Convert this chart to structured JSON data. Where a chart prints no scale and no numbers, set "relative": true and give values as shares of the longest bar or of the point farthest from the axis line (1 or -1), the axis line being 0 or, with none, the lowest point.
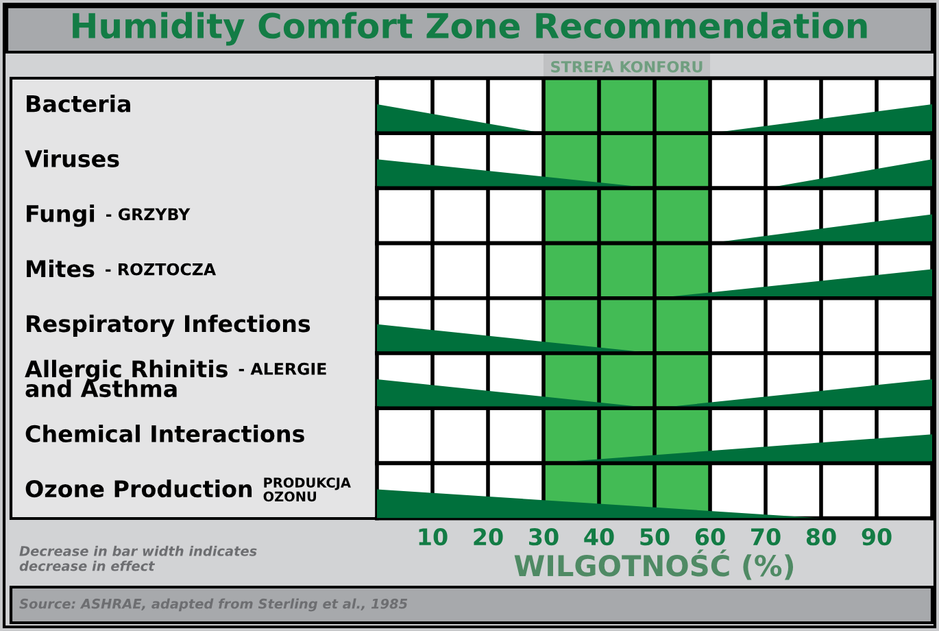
{
  "chart_data": [
    {
      "type": "area",
      "title": "Humidity Comfort Zone Recommendation",
      "ylabel": "Bacteria",
      "relative": true,
      "x": [
        0,
        30,
        60,
        100
      ],
      "series": [
        {
          "color": "#00703c",
          "values": [
            1,
            0,
            0,
            1
          ]
        }
      ],
      "xlim": [
        0,
        100
      ],
      "xticks": [
        10,
        20,
        30,
        40,
        50,
        60,
        70,
        80,
        90
      ],
      "grid": "x",
      "tick_labels": false,
      "bands": [
        {
          "axis": "x",
          "from": 30,
          "to": 60,
          "label": "STREFA KONFORU",
          "color": "#43bb55"
        }
      ]
    },
    {
      "type": "area",
      "ylabel": "Viruses",
      "relative": true,
      "x": [
        0,
        50,
        70,
        100
      ],
      "series": [
        {
          "color": "#00703c",
          "values": [
            1,
            0,
            0,
            1
          ]
        }
      ],
      "xlim": [
        0,
        100
      ],
      "xticks": [
        10,
        20,
        30,
        40,
        50,
        60,
        70,
        80,
        90
      ],
      "grid": "x",
      "tick_labels": false,
      "bands": [
        {
          "axis": "x",
          "from": 30,
          "to": 60,
          "color": "#43bb55"
        }
      ]
    },
    {
      "type": "area",
      "ylabel": "Fungi",
      "annotations": [
        "- GRZYBY"
      ],
      "relative": true,
      "x": [
        0,
        60,
        100
      ],
      "series": [
        {
          "color": "#00703c",
          "values": [
            0,
            0,
            1
          ]
        }
      ],
      "xlim": [
        0,
        100
      ],
      "xticks": [
        10,
        20,
        30,
        40,
        50,
        60,
        70,
        80,
        90
      ],
      "grid": "x",
      "tick_labels": false,
      "bands": [
        {
          "axis": "x",
          "from": 30,
          "to": 60,
          "color": "#43bb55"
        }
      ]
    },
    {
      "type": "area",
      "ylabel": "Mites",
      "annotations": [
        "- ROZTOCZA"
      ],
      "relative": true,
      "x": [
        0,
        50,
        100
      ],
      "series": [
        {
          "color": "#00703c",
          "values": [
            0,
            0,
            1
          ]
        }
      ],
      "xlim": [
        0,
        100
      ],
      "xticks": [
        10,
        20,
        30,
        40,
        50,
        60,
        70,
        80,
        90
      ],
      "grid": "x",
      "tick_labels": false,
      "bands": [
        {
          "axis": "x",
          "from": 30,
          "to": 60,
          "color": "#43bb55"
        }
      ]
    },
    {
      "type": "area",
      "ylabel": "Respiratory Infections",
      "relative": true,
      "x": [
        0,
        50,
        100
      ],
      "series": [
        {
          "color": "#00703c",
          "values": [
            1,
            0,
            0
          ]
        }
      ],
      "xlim": [
        0,
        100
      ],
      "xticks": [
        10,
        20,
        30,
        40,
        50,
        60,
        70,
        80,
        90
      ],
      "grid": "x",
      "tick_labels": false,
      "bands": [
        {
          "axis": "x",
          "from": 30,
          "to": 60,
          "color": "#43bb55"
        }
      ]
    },
    {
      "type": "area",
      "ylabel": "Allergic Rhinitis\nand Asthma",
      "annotations": [
        "- ALERGIE"
      ],
      "relative": true,
      "x": [
        0,
        50,
        100
      ],
      "series": [
        {
          "color": "#00703c",
          "values": [
            1,
            0,
            1
          ]
        }
      ],
      "xlim": [
        0,
        100
      ],
      "xticks": [
        10,
        20,
        30,
        40,
        50,
        60,
        70,
        80,
        90
      ],
      "grid": "x",
      "tick_labels": false,
      "bands": [
        {
          "axis": "x",
          "from": 30,
          "to": 60,
          "color": "#43bb55"
        }
      ]
    },
    {
      "type": "area",
      "ylabel": "Chemical Interactions",
      "relative": true,
      "x": [
        0,
        30,
        100
      ],
      "series": [
        {
          "color": "#00703c",
          "values": [
            0,
            0,
            1
          ]
        }
      ],
      "xlim": [
        0,
        100
      ],
      "xticks": [
        10,
        20,
        30,
        40,
        50,
        60,
        70,
        80,
        90
      ],
      "grid": "x",
      "tick_labels": false,
      "bands": [
        {
          "axis": "x",
          "from": 30,
          "to": 60,
          "color": "#43bb55"
        }
      ]
    },
    {
      "type": "area",
      "ylabel": "Ozone Production",
      "xlabel": "WILGOTNOŚĆ (%)",
      "annotations": [
        "PRODUKCJA\nOZONU",
        "Decrease in bar width indicates\ndecrease in effect",
        "Source: ASHRAE, adapted from Sterling et al., 1985"
      ],
      "relative": true,
      "x": [
        0,
        80,
        100
      ],
      "series": [
        {
          "color": "#00703c",
          "values": [
            1,
            0,
            0
          ]
        }
      ],
      "xlim": [
        0,
        100
      ],
      "xticks": [
        10,
        20,
        30,
        40,
        50,
        60,
        70,
        80,
        90
      ],
      "grid": "x",
      "tick_labels": "x",
      "bands": [
        {
          "axis": "x",
          "from": 30,
          "to": 60,
          "color": "#43bb55"
        }
      ]
    }
  ]
}
